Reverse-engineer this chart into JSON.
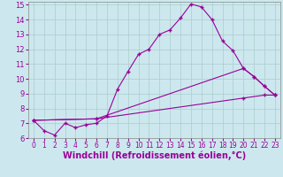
{
  "xlabel": "Windchill (Refroidissement éolien,°C)",
  "background_color": "#cce8ee",
  "line_color": "#990099",
  "grid_color": "#aacccc",
  "xlim": [
    -0.5,
    23.5
  ],
  "ylim": [
    6,
    15.2
  ],
  "xticks": [
    0,
    1,
    2,
    3,
    4,
    5,
    6,
    7,
    8,
    9,
    10,
    11,
    12,
    13,
    14,
    15,
    16,
    17,
    18,
    19,
    20,
    21,
    22,
    23
  ],
  "yticks": [
    6,
    7,
    8,
    9,
    10,
    11,
    12,
    13,
    14,
    15
  ],
  "line1_x": [
    0,
    1,
    2,
    3,
    4,
    5,
    6,
    7,
    8,
    9,
    10,
    11,
    12,
    13,
    14,
    15,
    16,
    17,
    18,
    19,
    20,
    21,
    22,
    23
  ],
  "line1_y": [
    7.2,
    6.5,
    6.2,
    7.0,
    6.7,
    6.9,
    7.0,
    7.5,
    9.3,
    10.5,
    11.65,
    12.0,
    13.0,
    13.3,
    14.1,
    15.05,
    14.85,
    14.0,
    12.55,
    11.9,
    10.7,
    10.15,
    9.5,
    8.9
  ],
  "line2_x": [
    0,
    6,
    20,
    21,
    22,
    23
  ],
  "line2_y": [
    7.2,
    7.3,
    10.7,
    10.15,
    9.5,
    8.9
  ],
  "line3_x": [
    0,
    6,
    20,
    22,
    23
  ],
  "line3_y": [
    7.2,
    7.3,
    8.7,
    8.9,
    8.9
  ],
  "xlabel_fontsize": 7,
  "tick_fontsize": 6
}
